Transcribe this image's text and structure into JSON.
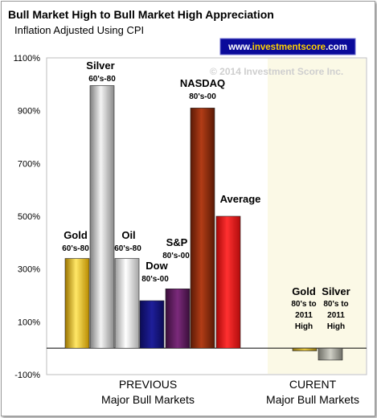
{
  "chart_data": {
    "type": "bar",
    "title": "Bull Market High to Bull Market High Appreciation",
    "subtitle": "Inflation Adjusted Using CPI",
    "source_badge": {
      "prefix": "www.",
      "brand": "investmentscore",
      "suffix": ".com"
    },
    "watermark": "© 2014 Investment Score Inc.",
    "ylim": [
      -100,
      1100
    ],
    "yticks": [
      "1100%",
      "900%",
      "700%",
      "500%",
      "300%",
      "100%",
      "-100%"
    ],
    "ytick_values": [
      1100,
      900,
      700,
      500,
      300,
      100,
      -100
    ],
    "groups": [
      {
        "label_line1": "PREVIOUS",
        "label_line2": "Major Bull Markets"
      },
      {
        "label_line1": "CURENT",
        "label_line2": "Major Bull Markets"
      }
    ],
    "bars": [
      {
        "name": "Gold",
        "period": "60's-80",
        "value": 340,
        "color": "#f0c01a",
        "group": 0
      },
      {
        "name": "Silver",
        "period": "60's-80",
        "value": 995,
        "color": "#bdbdbd",
        "group": 0
      },
      {
        "name": "Oil",
        "period": "60's-80",
        "value": 340,
        "color": "#d8d8d8",
        "group": 0
      },
      {
        "name": "Dow",
        "period": "80's-00",
        "value": 180,
        "color": "#17177a",
        "group": 0
      },
      {
        "name": "S&P",
        "period": "80's-00",
        "value": 225,
        "color": "#5a1a5a",
        "group": 0
      },
      {
        "name": "NASDAQ",
        "period": "80's-00",
        "value": 910,
        "color": "#8b2a10",
        "group": 0
      },
      {
        "name": "Average",
        "period": "",
        "value": 500,
        "color": "#dc1414",
        "group": 0
      },
      {
        "name": "Gold",
        "period": "80's to 2011 High",
        "value": -10,
        "color": "#c6a820",
        "group": 1
      },
      {
        "name": "Silver",
        "period": "80's to 2011 High",
        "value": -45,
        "color": "#a9a9a0",
        "group": 1
      }
    ],
    "colors": {
      "current_panel_bg": "#fbf9e6",
      "badge_bg": "#0a0a9a",
      "badge_brand": "#ffd200"
    }
  }
}
